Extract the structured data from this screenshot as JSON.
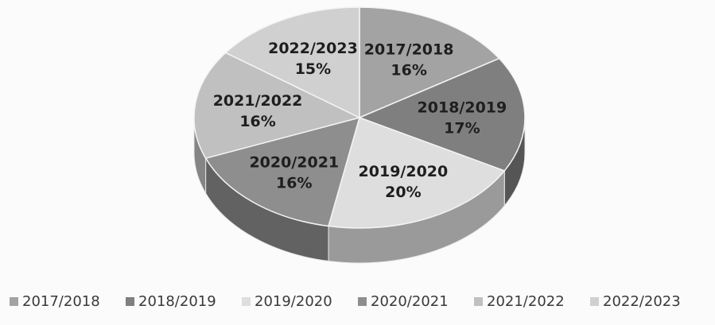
{
  "chart_data": {
    "type": "pie",
    "style": "3d",
    "categories": [
      "2017/2018",
      "2018/2019",
      "2019/2020",
      "2020/2021",
      "2021/2022",
      "2022/2023"
    ],
    "values": [
      16,
      17,
      20,
      16,
      16,
      15
    ],
    "unit": "%",
    "data_labels": [
      {
        "category": "2017/2018",
        "percent": "16%"
      },
      {
        "category": "2018/2019",
        "percent": "17%"
      },
      {
        "category": "2019/2020",
        "percent": "20%"
      },
      {
        "category": "2020/2021",
        "percent": "16%"
      },
      {
        "category": "2021/2022",
        "percent": "16%"
      },
      {
        "category": "2022/2023",
        "percent": "15%"
      }
    ],
    "colors": [
      "#a3a3a3",
      "#7f7f7f",
      "#dedede",
      "#8e8e8e",
      "#c0c0c0",
      "#d0d0d0"
    ],
    "side_colors": [
      "#6e6e6e",
      "#555555",
      "#9a9a9a",
      "#626262",
      "#858585",
      "#949494"
    ],
    "title": "",
    "legend_position": "bottom"
  }
}
